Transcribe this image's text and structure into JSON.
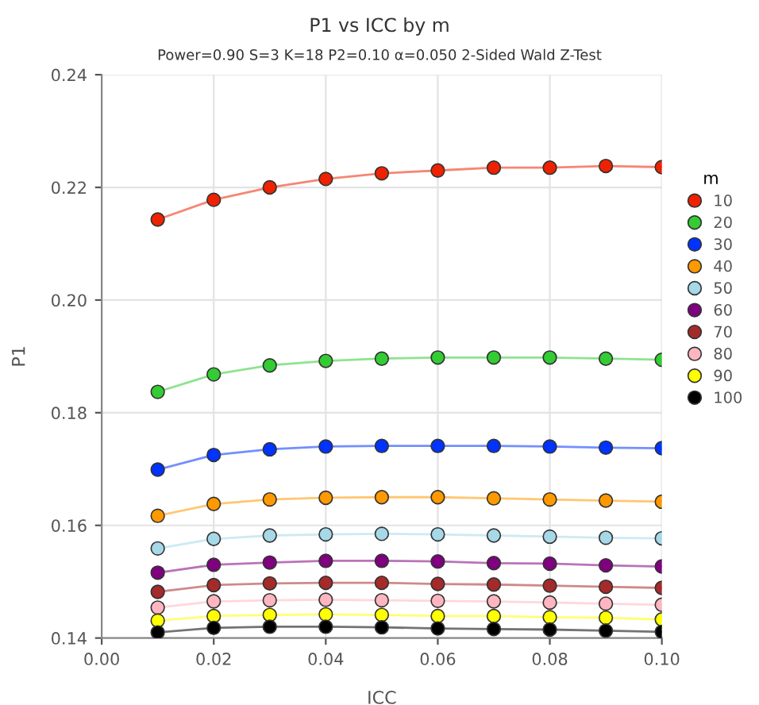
{
  "chart_data": {
    "type": "line",
    "title": "P1 vs ICC by m",
    "subtitle": "Power=0.90 S=3 K=18 P2=0.10 α=0.050 2-Sided Wald Z-Test",
    "xlabel": "ICC",
    "ylabel": "P1",
    "legend_title": "m",
    "x": [
      0.01,
      0.02,
      0.03,
      0.04,
      0.05,
      0.06,
      0.07,
      0.08,
      0.09,
      0.1
    ],
    "series": [
      {
        "name": "10",
        "color": "#ee2200",
        "values": [
          0.2143,
          0.2178,
          0.22,
          0.2215,
          0.2225,
          0.223,
          0.2235,
          0.2235,
          0.2238,
          0.2236
        ]
      },
      {
        "name": "20",
        "color": "#33cc33",
        "values": [
          0.1837,
          0.1868,
          0.1884,
          0.1892,
          0.1896,
          0.1898,
          0.1898,
          0.1898,
          0.1896,
          0.1894
        ]
      },
      {
        "name": "30",
        "color": "#0033ff",
        "values": [
          0.1699,
          0.1725,
          0.1735,
          0.174,
          0.1741,
          0.1741,
          0.1741,
          0.174,
          0.1738,
          0.1737
        ]
      },
      {
        "name": "40",
        "color": "#ff9900",
        "values": [
          0.1617,
          0.1638,
          0.1646,
          0.1649,
          0.165,
          0.165,
          0.1648,
          0.1646,
          0.1644,
          0.1642
        ]
      },
      {
        "name": "50",
        "color": "#a6d8e8",
        "values": [
          0.1559,
          0.1576,
          0.1582,
          0.1584,
          0.1585,
          0.1584,
          0.1582,
          0.158,
          0.1578,
          0.1577
        ]
      },
      {
        "name": "60",
        "color": "#800080",
        "values": [
          0.1516,
          0.153,
          0.1534,
          0.1537,
          0.1537,
          0.1536,
          0.1533,
          0.1532,
          0.1529,
          0.1527
        ]
      },
      {
        "name": "70",
        "color": "#a52a2a",
        "values": [
          0.1482,
          0.1494,
          0.1497,
          0.1498,
          0.1498,
          0.1496,
          0.1495,
          0.1493,
          0.1491,
          0.1489
        ]
      },
      {
        "name": "80",
        "color": "#ffb6c1",
        "values": [
          0.1454,
          0.1465,
          0.1467,
          0.1468,
          0.1467,
          0.1466,
          0.1465,
          0.1463,
          0.1461,
          0.1459
        ]
      },
      {
        "name": "90",
        "color": "#ffff00",
        "values": [
          0.1431,
          0.1439,
          0.1441,
          0.1442,
          0.1441,
          0.1439,
          0.1439,
          0.1437,
          0.1436,
          0.1433
        ]
      },
      {
        "name": "100",
        "color": "#000000",
        "values": [
          0.141,
          0.1418,
          0.142,
          0.142,
          0.1419,
          0.1417,
          0.1416,
          0.1415,
          0.1413,
          0.1411
        ]
      }
    ],
    "xlim": [
      0.0,
      0.1
    ],
    "xticks": [
      {
        "value": 0.0,
        "label": "0.00"
      },
      0.02,
      0.04,
      0.06,
      0.08,
      {
        "value": 0.1,
        "label": "0.10"
      }
    ],
    "ylim": [
      0.14,
      0.24
    ],
    "yticks": [
      {
        "value": 0.14,
        "label": "0.14"
      },
      {
        "value": 0.16,
        "label": "0.16"
      },
      {
        "value": 0.18,
        "label": "0.18"
      },
      {
        "value": 0.2,
        "label": "0.20"
      },
      {
        "value": 0.22,
        "label": "0.22"
      },
      {
        "value": 0.24,
        "label": "0.24"
      }
    ],
    "grid": true,
    "legend": "right",
    "marker": "circle",
    "line_style": "solid"
  }
}
